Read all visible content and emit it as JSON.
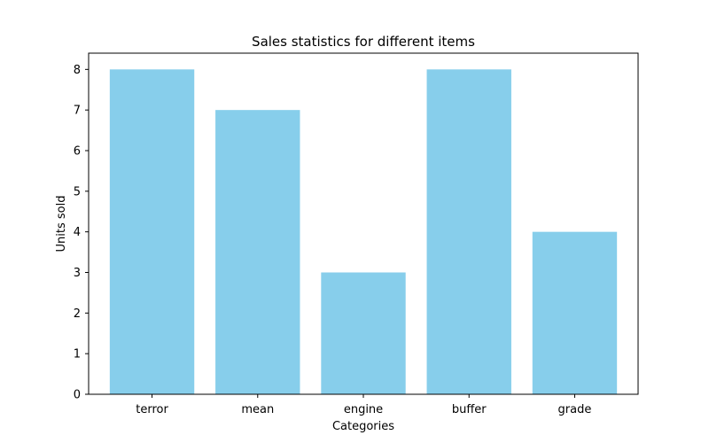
{
  "chart_data": {
    "type": "bar",
    "title": "Sales statistics for different items",
    "xlabel": "Categories",
    "ylabel": "Units sold",
    "categories": [
      "terror",
      "mean",
      "engine",
      "buffer",
      "grade"
    ],
    "values": [
      8,
      7,
      3,
      8,
      4
    ],
    "ylim": [
      0,
      8.4
    ],
    "yticks": [
      0,
      1,
      2,
      3,
      4,
      5,
      6,
      7,
      8
    ],
    "bar_color": "#87ceeb",
    "grid": false,
    "legend": "none"
  }
}
